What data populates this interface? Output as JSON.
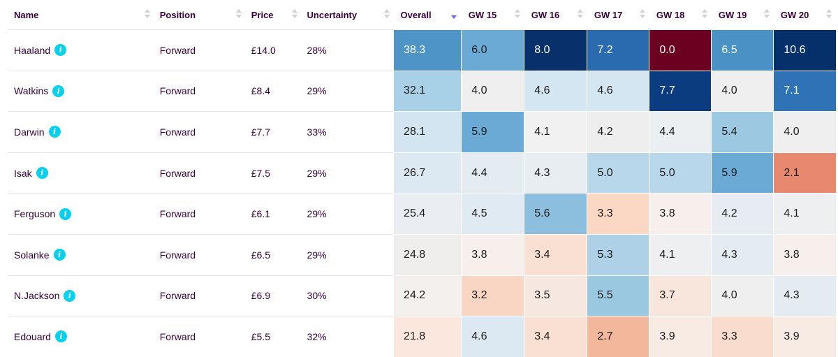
{
  "columns": {
    "name": "Name",
    "position": "Position",
    "price": "Price",
    "uncertainty": "Uncertainty",
    "overall": "Overall",
    "gw": [
      "GW 15",
      "GW 16",
      "GW 17",
      "GW 18",
      "GW 19",
      "GW 20"
    ]
  },
  "info_icon_glyph": "i",
  "players": [
    {
      "name": "Haaland",
      "position": "Forward",
      "price": "£14.0",
      "uncertainty": "28%",
      "overall": "38.3",
      "gw": [
        "6.0",
        "8.0",
        "7.2",
        "0.0",
        "6.5",
        "10.6"
      ]
    },
    {
      "name": "Watkins",
      "position": "Forward",
      "price": "£8.4",
      "uncertainty": "29%",
      "overall": "32.1",
      "gw": [
        "4.0",
        "4.6",
        "4.6",
        "7.7",
        "4.0",
        "7.1"
      ]
    },
    {
      "name": "Darwin",
      "position": "Forward",
      "price": "£7.7",
      "uncertainty": "33%",
      "overall": "28.1",
      "gw": [
        "5.9",
        "4.1",
        "4.2",
        "4.4",
        "5.4",
        "4.0"
      ]
    },
    {
      "name": "Isak",
      "position": "Forward",
      "price": "£7.5",
      "uncertainty": "29%",
      "overall": "26.7",
      "gw": [
        "4.4",
        "4.3",
        "5.0",
        "5.0",
        "5.9",
        "2.1"
      ]
    },
    {
      "name": "Ferguson",
      "position": "Forward",
      "price": "£6.1",
      "uncertainty": "29%",
      "overall": "25.4",
      "gw": [
        "4.5",
        "5.6",
        "3.3",
        "3.8",
        "4.2",
        "4.1"
      ]
    },
    {
      "name": "Solanke",
      "position": "Forward",
      "price": "£6.5",
      "uncertainty": "29%",
      "overall": "24.8",
      "gw": [
        "3.8",
        "3.4",
        "5.3",
        "4.1",
        "4.3",
        "3.8"
      ]
    },
    {
      "name": "N.Jackson",
      "position": "Forward",
      "price": "£6.9",
      "uncertainty": "30%",
      "overall": "24.2",
      "gw": [
        "3.2",
        "3.5",
        "5.5",
        "3.7",
        "4.0",
        "4.3"
      ]
    },
    {
      "name": "Edouard",
      "position": "Forward",
      "price": "£5.5",
      "uncertainty": "32%",
      "overall": "21.8",
      "gw": [
        "4.6",
        "3.4",
        "2.7",
        "3.9",
        "3.3",
        "3.9"
      ]
    }
  ],
  "cell_colors": [
    [
      "#4e94c6",
      "#6aaad4",
      "#08306b",
      "#2a6bb0",
      "#6b0020",
      "#4a91c5",
      "#05306a"
    ],
    [
      "#a8d0e6",
      "#efefef",
      "#d4e6f1",
      "#d4e6f1",
      "#0b3c80",
      "#efefef",
      "#2f72b6"
    ],
    [
      "#d2e5f0",
      "#6aaad4",
      "#f1f1f1",
      "#eeeeee",
      "#ebeff2",
      "#9cc8e1",
      "#efefef"
    ],
    [
      "#dde9f2",
      "#e4ecf2",
      "#e8edf1",
      "#b9d7ea",
      "#b9d7ea",
      "#6aaad4",
      "#e6896f"
    ],
    [
      "#eaeef2",
      "#e0eaf2",
      "#8cbfdd",
      "#fbd8c4",
      "#f6efec",
      "#e6ecf1",
      "#edeff1"
    ],
    [
      "#f0eeed",
      "#f7efeb",
      "#fae0d2",
      "#aed1e7",
      "#edeff1",
      "#e4ebf1",
      "#f7efeb"
    ],
    [
      "#f4f0ee",
      "#f9d6c3",
      "#f6e8e0",
      "#9bc8e1",
      "#f8e6dd",
      "#efefef",
      "#e4ebf1"
    ],
    [
      "#fbe7de",
      "#dde9f2",
      "#fae0d2",
      "#f3b79c",
      "#f8ebe4",
      "#f9dccd",
      "#f8ebe4"
    ]
  ],
  "dark_text_threshold_note": ""
}
